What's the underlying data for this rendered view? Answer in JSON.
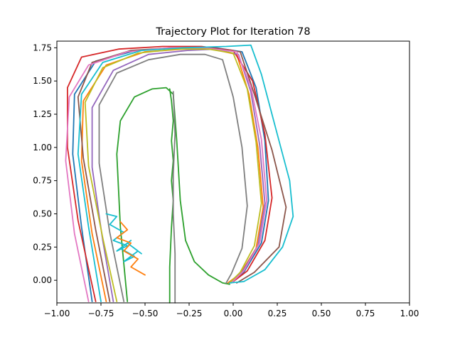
{
  "chart_data": {
    "type": "line",
    "title": "Trajectory Plot for Iteration 78",
    "xlabel": "",
    "ylabel": "",
    "xlim": [
      -1.0,
      1.0
    ],
    "ylim": [
      -0.17,
      1.8
    ],
    "x_ticks": [
      -1.0,
      -0.75,
      -0.5,
      -0.25,
      0.0,
      0.25,
      0.5,
      0.75,
      1.0
    ],
    "x_tick_labels": [
      "−1.00",
      "−0.75",
      "−0.50",
      "−0.25",
      "0.00",
      "0.25",
      "0.50",
      "0.75",
      "1.00"
    ],
    "y_ticks": [
      0.0,
      0.25,
      0.5,
      0.75,
      1.0,
      1.25,
      1.5,
      1.75
    ],
    "y_tick_labels": [
      "0.00",
      "0.25",
      "0.50",
      "0.75",
      "1.00",
      "1.25",
      "1.50",
      "1.75"
    ],
    "grid": false,
    "legend": "none",
    "palette": [
      "#1f77b4",
      "#ff7f0e",
      "#2ca02c",
      "#d62728",
      "#9467bd",
      "#8c564b",
      "#e377c2",
      "#7f7f7f",
      "#bcbd22",
      "#17becf"
    ],
    "series": [
      {
        "color": "#1f77b4",
        "x": [
          -0.8,
          -0.86,
          -0.91,
          -0.9,
          -0.78,
          -0.55,
          -0.3,
          -0.1,
          0.05,
          0.13,
          0.18,
          0.2,
          0.16,
          0.06,
          -0.02
        ],
        "y": [
          -0.16,
          0.4,
          0.95,
          1.4,
          1.65,
          1.73,
          1.75,
          1.75,
          1.72,
          1.45,
          1.05,
          0.6,
          0.28,
          0.06,
          -0.02
        ]
      },
      {
        "color": "#ff7f0e",
        "x": [
          -0.72,
          -0.8,
          -0.86,
          -0.85,
          -0.72,
          -0.5,
          -0.28,
          -0.12,
          0.02,
          0.09,
          0.14,
          0.17,
          0.13,
          0.04,
          -0.03
        ],
        "y": [
          -0.16,
          0.35,
          0.9,
          1.35,
          1.62,
          1.72,
          1.74,
          1.74,
          1.7,
          1.4,
          1.0,
          0.55,
          0.24,
          0.05,
          -0.02
        ]
      },
      {
        "color": "#2ca02c",
        "x": [
          -0.6,
          -0.64,
          -0.66,
          -0.64,
          -0.56,
          -0.46,
          -0.38,
          -0.34,
          -0.32,
          -0.3,
          -0.27,
          -0.22,
          -0.14,
          -0.06,
          -0.02
        ],
        "y": [
          -0.16,
          0.4,
          0.95,
          1.2,
          1.38,
          1.44,
          1.45,
          1.4,
          1.05,
          0.6,
          0.3,
          0.14,
          0.04,
          -0.02,
          -0.03
        ]
      },
      {
        "color": "#d62728",
        "x": [
          -0.78,
          -0.88,
          -0.94,
          -0.94,
          -0.86,
          -0.65,
          -0.4,
          -0.18,
          0.0,
          0.11,
          0.18,
          0.22,
          0.18,
          0.08,
          0.0
        ],
        "y": [
          -0.16,
          0.45,
          1.0,
          1.45,
          1.68,
          1.74,
          1.76,
          1.76,
          1.73,
          1.5,
          1.1,
          0.62,
          0.3,
          0.07,
          -0.01
        ]
      },
      {
        "color": "#9467bd",
        "x": [
          -0.68,
          -0.74,
          -0.8,
          -0.8,
          -0.68,
          -0.48,
          -0.26,
          -0.1,
          0.03,
          0.1,
          0.15,
          0.18,
          0.14,
          0.05,
          -0.02
        ],
        "y": [
          -0.16,
          0.3,
          0.85,
          1.3,
          1.58,
          1.7,
          1.73,
          1.74,
          1.7,
          1.42,
          1.02,
          0.58,
          0.26,
          0.06,
          -0.02
        ]
      },
      {
        "color": "#8c564b",
        "x": [
          -0.7,
          -0.78,
          -0.85,
          -0.88,
          -0.8,
          -0.58,
          -0.34,
          -0.14,
          0.04,
          0.12,
          0.22,
          0.3,
          0.26,
          0.12,
          0.02
        ],
        "y": [
          -0.16,
          0.38,
          0.92,
          1.38,
          1.64,
          1.73,
          1.75,
          1.75,
          1.72,
          1.4,
          0.98,
          0.55,
          0.25,
          0.06,
          -0.02
        ]
      },
      {
        "color": "#e377c2",
        "x": [
          -0.82,
          -0.9,
          -0.95,
          -0.93,
          -0.82,
          -0.6,
          -0.36,
          -0.16,
          0.02,
          0.1,
          0.16,
          0.19,
          0.15,
          0.06,
          -0.01
        ],
        "y": [
          -0.16,
          0.35,
          0.9,
          1.38,
          1.62,
          1.72,
          1.75,
          1.75,
          1.72,
          1.46,
          1.06,
          0.6,
          0.28,
          0.07,
          -0.02
        ]
      },
      {
        "color": "#7f7f7f",
        "x": [
          -0.62,
          -0.7,
          -0.76,
          -0.76,
          -0.66,
          -0.48,
          -0.3,
          -0.16,
          -0.06,
          0.0,
          0.05,
          0.08,
          0.05,
          -0.01,
          -0.04
        ],
        "y": [
          -0.16,
          0.36,
          0.88,
          1.32,
          1.56,
          1.66,
          1.7,
          1.7,
          1.66,
          1.38,
          1.0,
          0.56,
          0.24,
          0.05,
          -0.02
        ]
      },
      {
        "color": "#bcbd22",
        "x": [
          -0.66,
          -0.74,
          -0.82,
          -0.84,
          -0.74,
          -0.54,
          -0.32,
          -0.14,
          0.0,
          0.08,
          0.13,
          0.16,
          0.12,
          0.04,
          -0.02
        ],
        "y": [
          -0.16,
          0.32,
          0.86,
          1.34,
          1.6,
          1.71,
          1.74,
          1.74,
          1.71,
          1.44,
          1.04,
          0.58,
          0.26,
          0.06,
          -0.02
        ]
      },
      {
        "color": "#17becf",
        "x": [
          -0.75,
          -0.82,
          -0.88,
          -0.86,
          -0.74,
          -0.52,
          -0.28,
          -0.04,
          0.1,
          0.16,
          0.24,
          0.32,
          0.34,
          0.28,
          0.18,
          0.06,
          -0.02
        ],
        "y": [
          -0.16,
          0.4,
          0.95,
          1.4,
          1.64,
          1.73,
          1.75,
          1.76,
          1.77,
          1.55,
          1.15,
          0.75,
          0.48,
          0.25,
          0.08,
          -0.01,
          -0.02
        ]
      },
      {
        "color": "#2ca02c",
        "x": [
          -0.36,
          -0.36,
          -0.35,
          -0.34,
          -0.35,
          -0.34,
          -0.35,
          -0.34,
          -0.35,
          -0.36
        ],
        "y": [
          -0.17,
          0.1,
          0.4,
          0.6,
          0.75,
          0.9,
          1.05,
          1.2,
          1.35,
          1.44
        ]
      },
      {
        "color": "#7f7f7f",
        "x": [
          -0.33,
          -0.33,
          -0.34,
          -0.34,
          -0.33,
          -0.34
        ],
        "y": [
          -0.17,
          0.2,
          0.5,
          0.8,
          1.1,
          1.42
        ]
      },
      {
        "color": "#17becf",
        "x": [
          -0.72,
          -0.66,
          -0.7,
          -0.62,
          -0.68,
          -0.6,
          -0.66,
          -0.58,
          -0.64,
          -0.56,
          -0.62,
          -0.54,
          -0.6,
          -0.52
        ],
        "y": [
          0.5,
          0.48,
          0.42,
          0.36,
          0.3,
          0.26,
          0.22,
          0.3,
          0.24,
          0.18,
          0.14,
          0.22,
          0.28,
          0.2
        ]
      },
      {
        "color": "#ff7f0e",
        "x": [
          -0.64,
          -0.6,
          -0.66,
          -0.58,
          -0.62,
          -0.54,
          -0.58,
          -0.5
        ],
        "y": [
          0.44,
          0.38,
          0.32,
          0.28,
          0.22,
          0.16,
          0.1,
          0.04
        ]
      }
    ]
  }
}
